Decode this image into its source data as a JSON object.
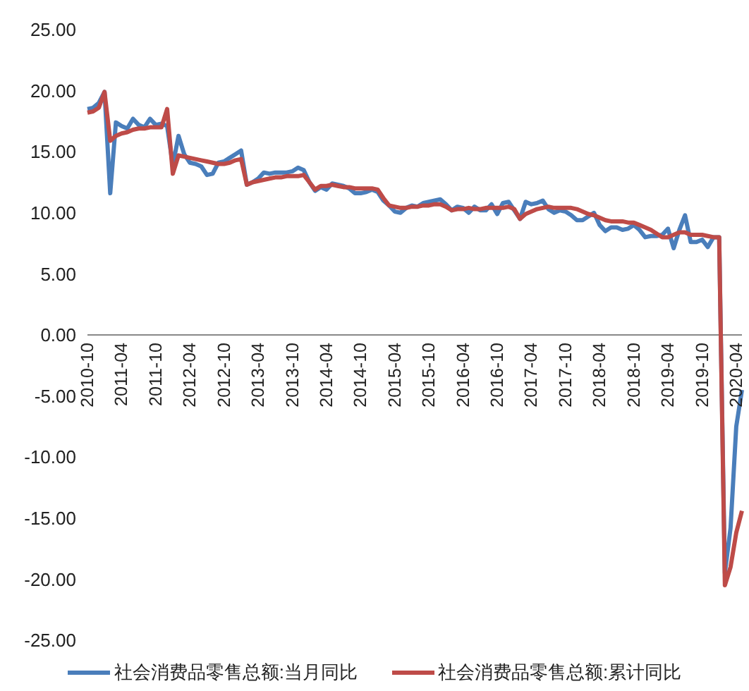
{
  "chart_data": {
    "type": "line",
    "categories": [
      "2010-10",
      null,
      null,
      null,
      null,
      null,
      "2011-04",
      null,
      null,
      null,
      null,
      null,
      "2011-10",
      null,
      null,
      null,
      null,
      null,
      "2012-04",
      null,
      null,
      null,
      null,
      null,
      "2012-10",
      null,
      null,
      null,
      null,
      null,
      "2013-04",
      null,
      null,
      null,
      null,
      null,
      "2013-10",
      null,
      null,
      null,
      null,
      null,
      "2014-04",
      null,
      null,
      null,
      null,
      null,
      "2014-10",
      null,
      null,
      null,
      null,
      null,
      "2015-04",
      null,
      null,
      null,
      null,
      null,
      "2015-10",
      null,
      null,
      null,
      null,
      null,
      "2016-04",
      null,
      null,
      null,
      null,
      null,
      "2016-10",
      null,
      null,
      null,
      null,
      null,
      "2017-04",
      null,
      null,
      null,
      null,
      null,
      "2017-10",
      null,
      null,
      null,
      null,
      null,
      "2018-04",
      null,
      null,
      null,
      null,
      null,
      "2018-10",
      null,
      null,
      null,
      null,
      null,
      "2019-04",
      null,
      null,
      null,
      null,
      null,
      "2019-10",
      null,
      null,
      null,
      null,
      null,
      "2020-04",
      null
    ],
    "series": [
      {
        "name": "社会消费品零售总额:当月同比",
        "color": "#4a7ebb",
        "values": [
          18.5,
          18.6,
          19.0,
          19.9,
          11.6,
          17.4,
          17.1,
          16.9,
          17.7,
          17.2,
          17.0,
          17.7,
          17.2,
          17.3,
          17.1,
          13.9,
          16.3,
          14.8,
          14.1,
          14.0,
          13.8,
          13.1,
          13.2,
          14.1,
          14.2,
          14.5,
          14.8,
          15.1,
          12.3,
          12.5,
          12.8,
          13.3,
          13.2,
          13.3,
          13.3,
          13.3,
          13.4,
          13.7,
          13.5,
          12.5,
          11.8,
          12.1,
          11.9,
          12.4,
          12.3,
          12.2,
          12.0,
          11.6,
          11.6,
          11.7,
          11.9,
          11.7,
          11.0,
          10.6,
          10.1,
          10.0,
          10.4,
          10.6,
          10.5,
          10.8,
          10.9,
          11.0,
          11.1,
          10.7,
          10.2,
          10.5,
          10.4,
          10.0,
          10.5,
          10.2,
          10.2,
          10.7,
          9.9,
          10.8,
          10.9,
          10.2,
          9.5,
          10.9,
          10.7,
          10.8,
          11.0,
          10.3,
          10.0,
          10.2,
          10.1,
          9.8,
          9.4,
          9.4,
          9.7,
          10.0,
          9.0,
          8.5,
          8.8,
          8.8,
          8.6,
          8.7,
          9.0,
          8.6,
          8.0,
          8.1,
          8.1,
          8.2,
          8.7,
          7.1,
          8.6,
          9.8,
          7.6,
          7.6,
          7.8,
          7.2,
          8.0,
          8.0,
          -19.5,
          -15.8,
          -7.5,
          -4.5
        ]
      },
      {
        "name": "社会消费品零售总额:累计同比",
        "color": "#be4b48",
        "values": [
          18.2,
          18.3,
          18.6,
          19.9,
          15.9,
          16.3,
          16.5,
          16.6,
          16.8,
          16.9,
          16.9,
          17.0,
          17.0,
          17.0,
          18.5,
          13.2,
          14.7,
          14.6,
          14.5,
          14.4,
          14.3,
          14.2,
          14.1,
          14.0,
          14.0,
          14.1,
          14.3,
          14.4,
          12.3,
          12.5,
          12.6,
          12.7,
          12.8,
          12.9,
          12.9,
          13.0,
          13.0,
          13.0,
          13.1,
          12.5,
          11.9,
          12.2,
          12.2,
          12.3,
          12.2,
          12.1,
          12.1,
          12.0,
          12.0,
          12.0,
          12.0,
          11.9,
          11.2,
          10.6,
          10.5,
          10.4,
          10.4,
          10.5,
          10.5,
          10.6,
          10.6,
          10.7,
          10.7,
          10.5,
          10.2,
          10.3,
          10.3,
          10.4,
          10.3,
          10.3,
          10.4,
          10.4,
          10.4,
          10.4,
          10.5,
          10.3,
          9.5,
          9.9,
          10.1,
          10.3,
          10.4,
          10.5,
          10.4,
          10.4,
          10.4,
          10.4,
          10.3,
          10.1,
          9.9,
          9.8,
          9.6,
          9.4,
          9.3,
          9.3,
          9.3,
          9.2,
          9.2,
          9.0,
          8.8,
          8.6,
          8.3,
          8.0,
          8.0,
          8.2,
          8.4,
          8.4,
          8.2,
          8.2,
          8.2,
          8.1,
          8.0,
          8.0,
          -20.5,
          -19.0,
          -16.2,
          -14.4
        ]
      }
    ],
    "ylim": [
      -25,
      25
    ],
    "yticks": [
      {
        "value": -25,
        "label": "-25.00"
      },
      {
        "value": -20,
        "label": "-20.00"
      },
      {
        "value": -15,
        "label": "-15.00"
      },
      {
        "value": -10,
        "label": "-10.00"
      },
      {
        "value": -5,
        "label": "-5.00"
      },
      {
        "value": 0,
        "label": "0.00"
      },
      {
        "value": 5,
        "label": "5.00"
      },
      {
        "value": 10,
        "label": "10.00"
      },
      {
        "value": 15,
        "label": "15.00"
      },
      {
        "value": 20,
        "label": "20.00"
      },
      {
        "value": 25,
        "label": "25.00"
      }
    ],
    "legend": "bottom",
    "marker": "none",
    "line_style": "solid"
  }
}
